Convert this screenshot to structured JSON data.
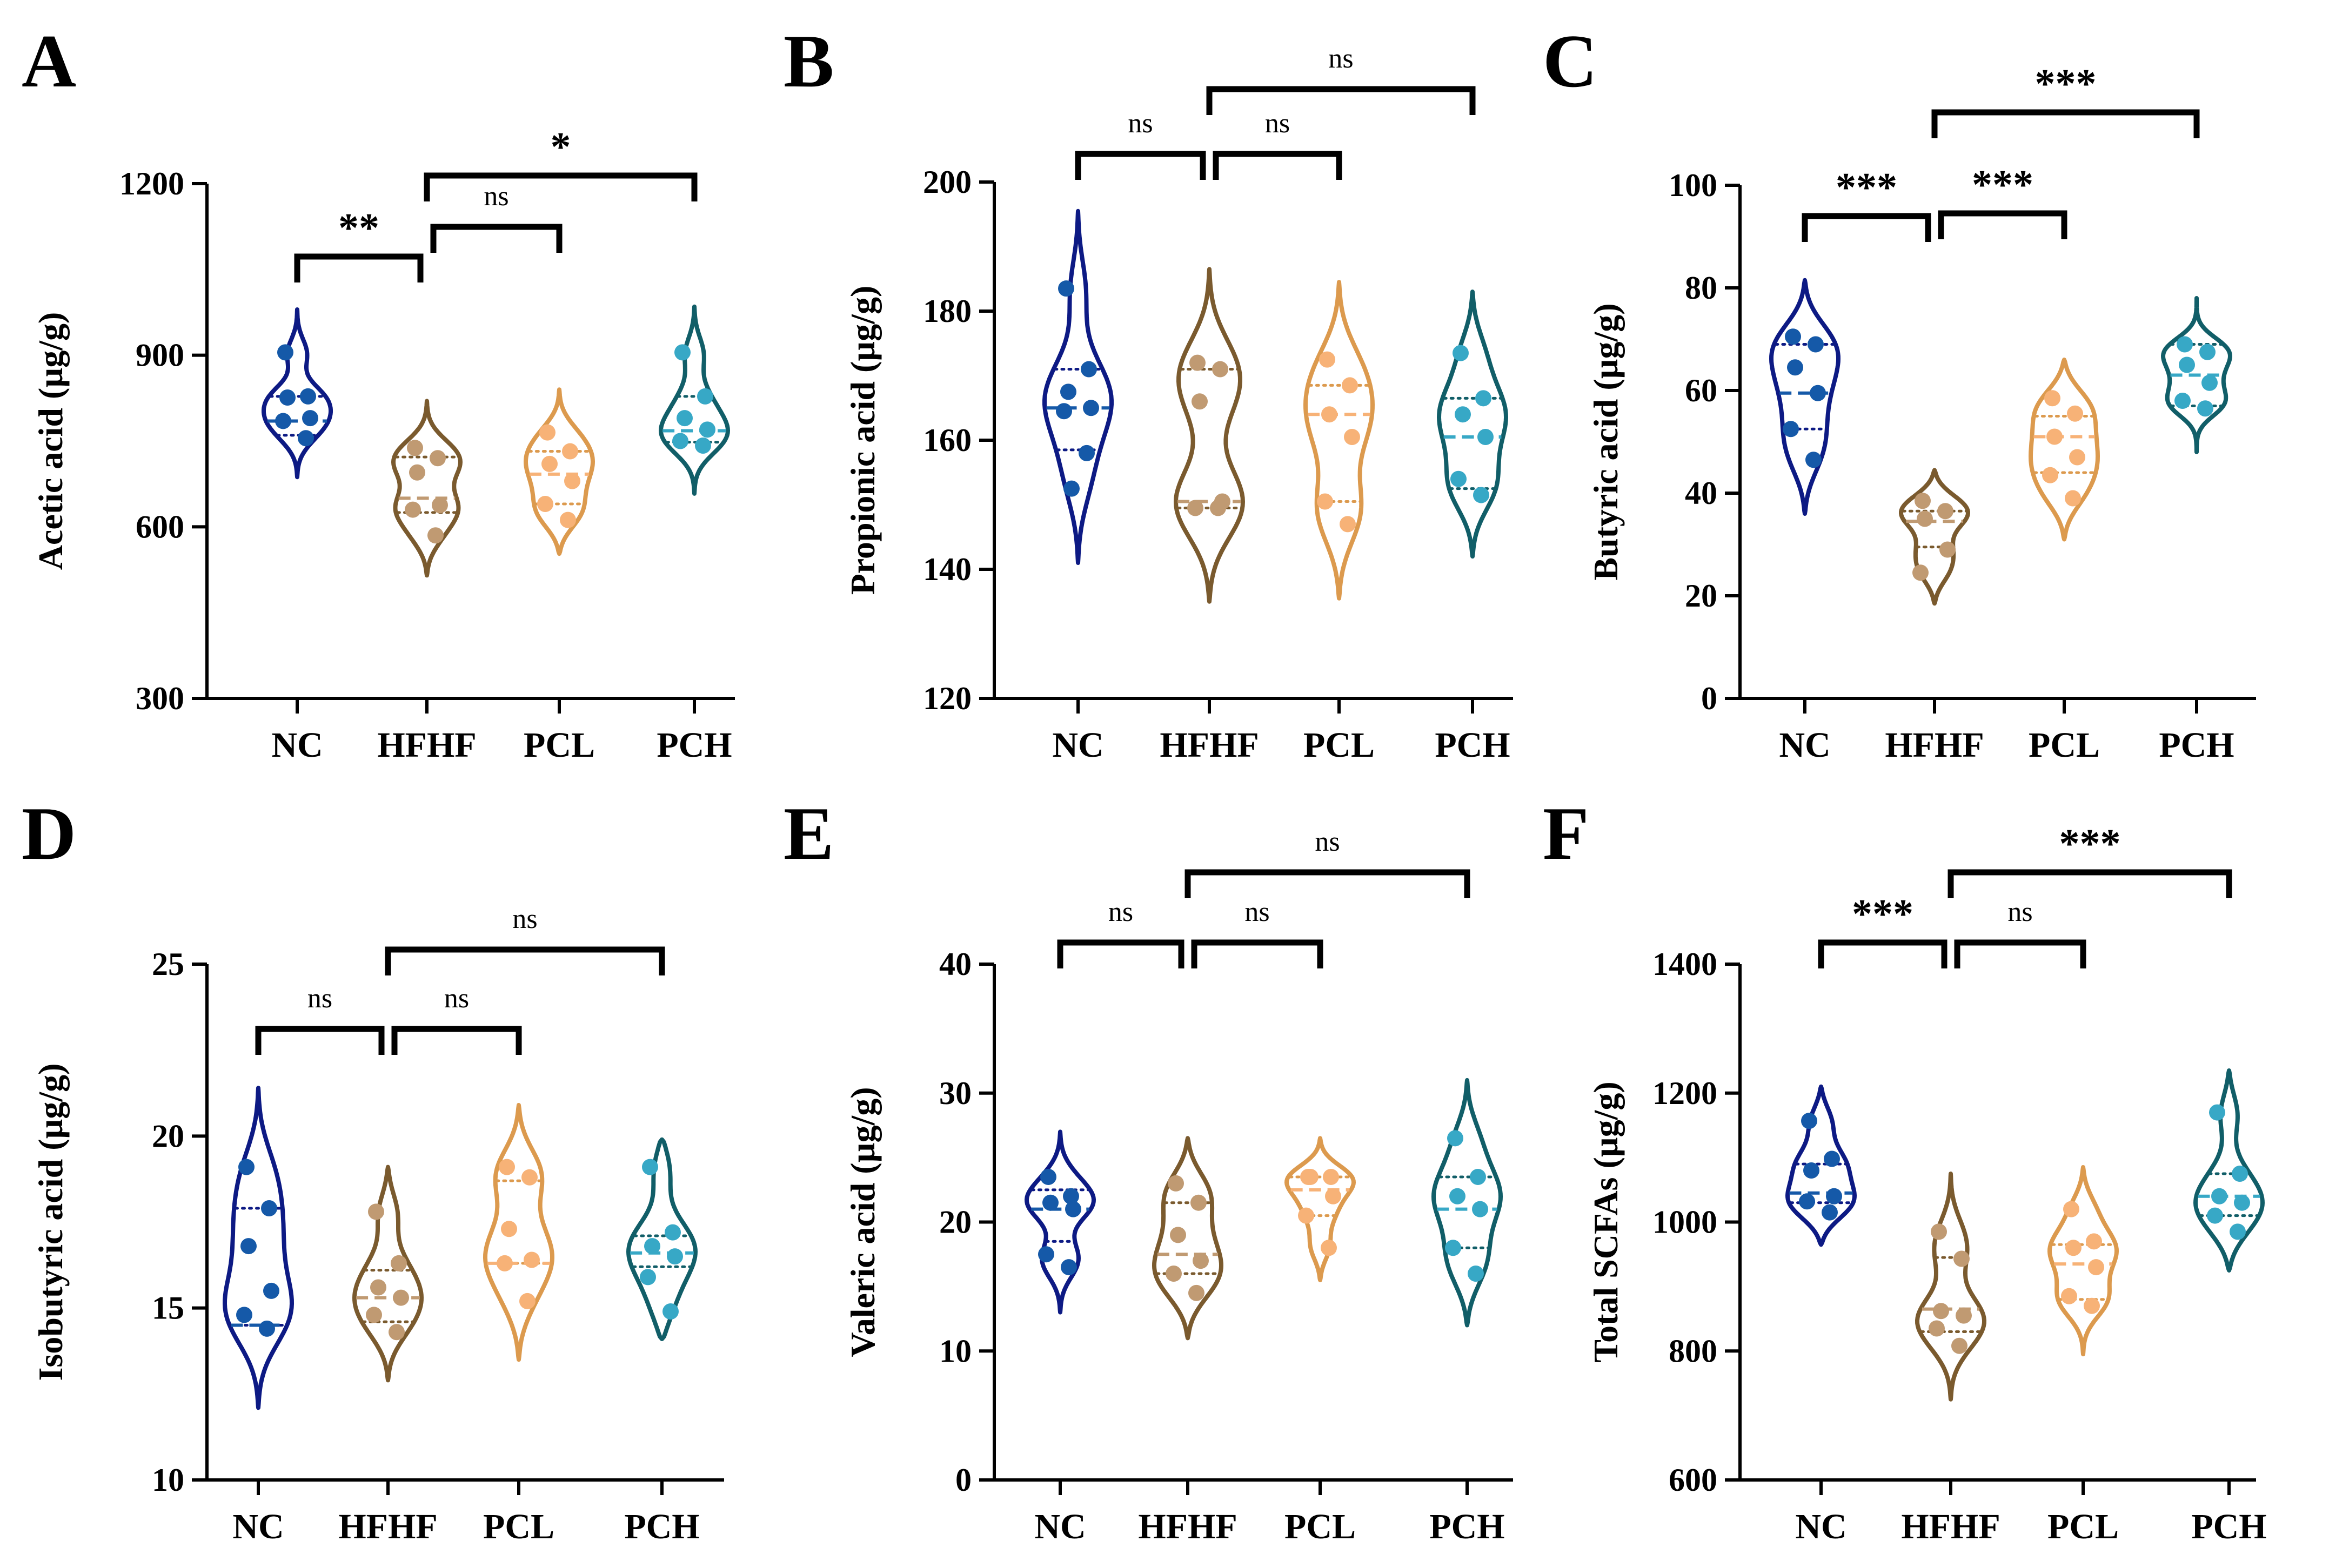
{
  "groups": [
    "NC",
    "HFHF",
    "PCL",
    "PCH"
  ],
  "colors": {
    "outline": [
      "#0d1a84",
      "#7a5a2e",
      "#dc9a4e",
      "#115e68"
    ],
    "points": [
      "#1559a8",
      "#c09a72",
      "#f7b277",
      "#37a8c6"
    ],
    "axis": "#000000"
  },
  "chart_data": [
    {
      "panel": "A",
      "type": "violin",
      "ylabel": "Acetic acid (µg/g)",
      "ylim": [
        300,
        1200
      ],
      "yticks": [
        "300",
        "600",
        "900",
        "1200"
      ],
      "categories": [
        "NC",
        "HFHF",
        "PCL",
        "PCH"
      ],
      "series": [
        {
          "name": "NC",
          "values": [
            905,
            828,
            826,
            790,
            785,
            755
          ],
          "median": 785,
          "q1": 760,
          "q3": 828,
          "min": 687,
          "max": 980
        },
        {
          "name": "HFHF",
          "values": [
            738,
            720,
            695,
            638,
            630,
            585
          ],
          "median": 650,
          "q1": 625,
          "q3": 722,
          "min": 515,
          "max": 820
        },
        {
          "name": "PCL",
          "values": [
            765,
            732,
            710,
            680,
            640,
            612
          ],
          "median": 692,
          "q1": 640,
          "q3": 732,
          "min": 553,
          "max": 840
        },
        {
          "name": "PCH",
          "values": [
            905,
            828,
            790,
            770,
            750,
            742
          ],
          "median": 768,
          "q1": 748,
          "q3": 828,
          "min": 658,
          "max": 985
        }
      ],
      "comparisons": [
        {
          "from": "NC",
          "to": "HFHF",
          "label": "**"
        },
        {
          "from": "HFHF",
          "to": "PCL",
          "label": "ns"
        },
        {
          "from": "HFHF",
          "to": "PCH",
          "label": "*"
        }
      ]
    },
    {
      "panel": "B",
      "type": "violin",
      "ylabel": "Propionic acid (µg/g)",
      "ylim": [
        120,
        200
      ],
      "yticks": [
        "120",
        "140",
        "160",
        "180",
        "200"
      ],
      "categories": [
        "NC",
        "HFHF",
        "PCL",
        "PCH"
      ],
      "series": [
        {
          "name": "NC",
          "values": [
            183.5,
            171,
            167.5,
            165,
            164.5,
            158,
            152.5
          ],
          "median": 165,
          "q1": 158.5,
          "q3": 171,
          "min": 141,
          "max": 195.5
        },
        {
          "name": "HFHF",
          "values": [
            172,
            171,
            166,
            150.5,
            149.5,
            149.5
          ],
          "median": 150.5,
          "q1": 149.5,
          "q3": 171,
          "min": 135,
          "max": 186.5
        },
        {
          "name": "PCL",
          "values": [
            172.5,
            168.5,
            164,
            160.5,
            150.5,
            147
          ],
          "median": 164,
          "q1": 150.5,
          "q3": 168.5,
          "min": 135.5,
          "max": 184.5
        },
        {
          "name": "PCH",
          "values": [
            173.5,
            166.5,
            164,
            160.5,
            154,
            151.5
          ],
          "median": 160.5,
          "q1": 152.5,
          "q3": 166.5,
          "min": 142,
          "max": 183
        }
      ],
      "comparisons": [
        {
          "from": "NC",
          "to": "HFHF",
          "label": "ns"
        },
        {
          "from": "HFHF",
          "to": "PCL",
          "label": "ns"
        },
        {
          "from": "HFHF",
          "to": "PCH",
          "label": "ns"
        }
      ]
    },
    {
      "panel": "C",
      "type": "violin",
      "ylabel": "Butyric acid (µg/g)",
      "ylim": [
        0,
        100
      ],
      "yticks": [
        "0",
        "20",
        "40",
        "60",
        "80",
        "100"
      ],
      "categories": [
        "NC",
        "HFHF",
        "PCL",
        "PCH"
      ],
      "series": [
        {
          "name": "NC",
          "values": [
            70.5,
            69,
            64.5,
            59.5,
            52.5,
            46.5
          ],
          "median": 59.5,
          "q1": 52.5,
          "q3": 69,
          "min": 36,
          "max": 81.5
        },
        {
          "name": "HFHF",
          "values": [
            38.5,
            36.5,
            35,
            29,
            24.5
          ],
          "median": 34.5,
          "q1": 29.5,
          "q3": 36.5,
          "min": 18.5,
          "max": 44.5
        },
        {
          "name": "PCL",
          "values": [
            58.5,
            55.5,
            51,
            47,
            43.5,
            39
          ],
          "median": 51,
          "q1": 44,
          "q3": 55,
          "min": 31,
          "max": 66
        },
        {
          "name": "PCH",
          "values": [
            69,
            67.5,
            65,
            61.5,
            58,
            56.5
          ],
          "median": 63,
          "q1": 57,
          "q3": 69,
          "min": 48,
          "max": 78
        }
      ],
      "comparisons": [
        {
          "from": "NC",
          "to": "HFHF",
          "label": "***"
        },
        {
          "from": "HFHF",
          "to": "PCL",
          "label": "***"
        },
        {
          "from": "HFHF",
          "to": "PCH",
          "label": "***"
        }
      ]
    },
    {
      "panel": "D",
      "type": "violin",
      "ylabel": "Isobutyric acid (µg/g)",
      "ylim": [
        10,
        25
      ],
      "yticks": [
        "10",
        "15",
        "20",
        "25"
      ],
      "categories": [
        "NC",
        "HFHF",
        "PCL",
        "PCH"
      ],
      "series": [
        {
          "name": "NC",
          "values": [
            19.1,
            17.9,
            16.8,
            15.5,
            14.8,
            14.4
          ],
          "median": 14.5,
          "q1": 14.5,
          "q3": 17.9,
          "min": 12.1,
          "max": 21.4
        },
        {
          "name": "HFHF",
          "values": [
            17.8,
            16.3,
            15.6,
            15.3,
            14.8,
            14.3
          ],
          "median": 15.3,
          "q1": 14.6,
          "q3": 16.1,
          "min": 12.9,
          "max": 19.1
        },
        {
          "name": "PCL",
          "values": [
            19.1,
            18.8,
            17.3,
            16.4,
            16.3,
            15.2
          ],
          "median": 16.3,
          "q1": 16.3,
          "q3": 18.7,
          "min": 13.5,
          "max": 20.9
        },
        {
          "name": "PCH",
          "values": [
            19.1,
            17.2,
            16.8,
            16.5,
            15.9,
            14.9
          ],
          "median": 16.6,
          "q1": 16.2,
          "q3": 17.1,
          "min": 14.1,
          "max": 19.9
        }
      ],
      "comparisons": [
        {
          "from": "NC",
          "to": "HFHF",
          "label": "ns"
        },
        {
          "from": "HFHF",
          "to": "PCL",
          "label": "ns"
        },
        {
          "from": "HFHF",
          "to": "PCH",
          "label": "ns"
        }
      ]
    },
    {
      "panel": "E",
      "type": "violin",
      "ylabel": "Valeric acid (µg/g)",
      "ylim": [
        0,
        40
      ],
      "yticks": [
        "0",
        "10",
        "20",
        "30",
        "40"
      ],
      "categories": [
        "NC",
        "HFHF",
        "PCL",
        "PCH"
      ],
      "series": [
        {
          "name": "NC",
          "values": [
            23.5,
            22,
            21.5,
            21,
            17.5,
            16.5
          ],
          "median": 21,
          "q1": 18.5,
          "q3": 22.5,
          "min": 13,
          "max": 27
        },
        {
          "name": "HFHF",
          "values": [
            23,
            21.5,
            19,
            17,
            16,
            14.5
          ],
          "median": 17.5,
          "q1": 16,
          "q3": 21.5,
          "min": 11,
          "max": 26.5
        },
        {
          "name": "PCL",
          "values": [
            23.5,
            23.5,
            23.5,
            22,
            20.5,
            18
          ],
          "median": 22.5,
          "q1": 20.5,
          "q3": 23.5,
          "min": 15.5,
          "max": 26.5
        },
        {
          "name": "PCH",
          "values": [
            26.5,
            23.5,
            22,
            21,
            18,
            16
          ],
          "median": 21,
          "q1": 18,
          "q3": 23.5,
          "min": 12,
          "max": 31
        }
      ],
      "comparisons": [
        {
          "from": "NC",
          "to": "HFHF",
          "label": "ns"
        },
        {
          "from": "HFHF",
          "to": "PCL",
          "label": "ns"
        },
        {
          "from": "HFHF",
          "to": "PCH",
          "label": "ns"
        }
      ]
    },
    {
      "panel": "F",
      "type": "violin",
      "ylabel": "Total SCFAs (µg/g)",
      "ylim": [
        600,
        1400
      ],
      "yticks": [
        "600",
        "800",
        "1000",
        "1200",
        "1400"
      ],
      "categories": [
        "NC",
        "HFHF",
        "PCL",
        "PCH"
      ],
      "series": [
        {
          "name": "NC",
          "values": [
            1157,
            1098,
            1080,
            1040,
            1032,
            1015
          ],
          "median": 1045,
          "q1": 1030,
          "q3": 1090,
          "min": 965,
          "max": 1210
        },
        {
          "name": "HFHF",
          "values": [
            985,
            943,
            862,
            855,
            835,
            808
          ],
          "median": 865,
          "q1": 830,
          "q3": 945,
          "min": 725,
          "max": 1075
        },
        {
          "name": "PCL",
          "values": [
            1020,
            970,
            960,
            930,
            885,
            870
          ],
          "median": 935,
          "q1": 880,
          "q3": 965,
          "min": 795,
          "max": 1085
        },
        {
          "name": "PCH",
          "values": [
            1170,
            1075,
            1040,
            1030,
            1010,
            985
          ],
          "median": 1040,
          "q1": 1010,
          "q3": 1075,
          "min": 925,
          "max": 1235
        }
      ],
      "comparisons": [
        {
          "from": "NC",
          "to": "HFHF",
          "label": "***"
        },
        {
          "from": "HFHF",
          "to": "PCL",
          "label": "ns"
        },
        {
          "from": "HFHF",
          "to": "PCH",
          "label": "***"
        }
      ]
    }
  ]
}
